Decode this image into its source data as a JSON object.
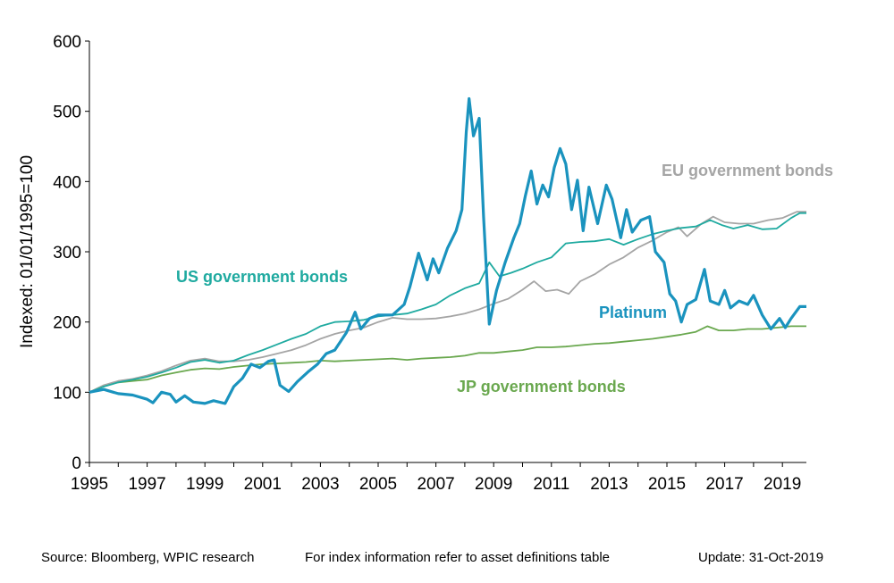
{
  "chart_data": {
    "type": "line",
    "title": "",
    "xlabel": "",
    "ylabel": "Indexed: 01/01/1995=100",
    "xlim": [
      1995,
      2019.83
    ],
    "ylim": [
      0,
      600
    ],
    "x_ticks": [
      "1995",
      "1997",
      "1999",
      "2001",
      "2003",
      "2005",
      "2007",
      "2009",
      "2011",
      "2013",
      "2015",
      "2017",
      "2019"
    ],
    "y_ticks": [
      "0",
      "100",
      "200",
      "300",
      "400",
      "500",
      "600"
    ],
    "grid": false,
    "legend": "inline labels",
    "series": [
      {
        "name": "Platinum",
        "color": "#1a93be",
        "points": [
          [
            1995,
            100
          ],
          [
            1995.5,
            104
          ],
          [
            1996,
            98
          ],
          [
            1996.5,
            96
          ],
          [
            1997,
            90
          ],
          [
            1997.2,
            85
          ],
          [
            1997.5,
            100
          ],
          [
            1997.8,
            97
          ],
          [
            1998,
            86
          ],
          [
            1998.3,
            95
          ],
          [
            1998.6,
            86
          ],
          [
            1999,
            84
          ],
          [
            1999.3,
            88
          ],
          [
            1999.7,
            84
          ],
          [
            2000,
            108
          ],
          [
            2000.3,
            120
          ],
          [
            2000.6,
            140
          ],
          [
            2000.9,
            135
          ],
          [
            2001.2,
            144
          ],
          [
            2001.4,
            146
          ],
          [
            2001.6,
            110
          ],
          [
            2001.9,
            101
          ],
          [
            2002.2,
            115
          ],
          [
            2002.6,
            130
          ],
          [
            2002.9,
            140
          ],
          [
            2003.2,
            155
          ],
          [
            2003.5,
            160
          ],
          [
            2003.9,
            185
          ],
          [
            2004.2,
            214
          ],
          [
            2004.4,
            190
          ],
          [
            2004.7,
            205
          ],
          [
            2005,
            210
          ],
          [
            2005.5,
            210
          ],
          [
            2005.9,
            225
          ],
          [
            2006.1,
            250
          ],
          [
            2006.4,
            298
          ],
          [
            2006.7,
            260
          ],
          [
            2006.9,
            290
          ],
          [
            2007.1,
            270
          ],
          [
            2007.4,
            305
          ],
          [
            2007.7,
            330
          ],
          [
            2007.9,
            360
          ],
          [
            2008.05,
            470
          ],
          [
            2008.15,
            518
          ],
          [
            2008.3,
            465
          ],
          [
            2008.5,
            490
          ],
          [
            2008.65,
            350
          ],
          [
            2008.85,
            197
          ],
          [
            2009.1,
            245
          ],
          [
            2009.4,
            285
          ],
          [
            2009.7,
            320
          ],
          [
            2009.9,
            340
          ],
          [
            2010.1,
            380
          ],
          [
            2010.3,
            415
          ],
          [
            2010.5,
            368
          ],
          [
            2010.7,
            395
          ],
          [
            2010.9,
            378
          ],
          [
            2011.1,
            420
          ],
          [
            2011.3,
            447
          ],
          [
            2011.5,
            425
          ],
          [
            2011.7,
            360
          ],
          [
            2011.9,
            402
          ],
          [
            2012.1,
            330
          ],
          [
            2012.3,
            392
          ],
          [
            2012.6,
            340
          ],
          [
            2012.9,
            395
          ],
          [
            2013.1,
            375
          ],
          [
            2013.4,
            320
          ],
          [
            2013.6,
            360
          ],
          [
            2013.8,
            328
          ],
          [
            2014.1,
            345
          ],
          [
            2014.4,
            350
          ],
          [
            2014.6,
            300
          ],
          [
            2014.9,
            285
          ],
          [
            2015.1,
            240
          ],
          [
            2015.3,
            230
          ],
          [
            2015.5,
            200
          ],
          [
            2015.7,
            225
          ],
          [
            2016,
            232
          ],
          [
            2016.3,
            275
          ],
          [
            2016.5,
            230
          ],
          [
            2016.8,
            225
          ],
          [
            2017,
            245
          ],
          [
            2017.2,
            220
          ],
          [
            2017.5,
            230
          ],
          [
            2017.8,
            225
          ],
          [
            2018,
            238
          ],
          [
            2018.3,
            210
          ],
          [
            2018.6,
            190
          ],
          [
            2018.9,
            205
          ],
          [
            2019.1,
            192
          ],
          [
            2019.3,
            205
          ],
          [
            2019.6,
            222
          ],
          [
            2019.83,
            222
          ]
        ]
      },
      {
        "name": "US government bonds",
        "color": "#1faaa0",
        "points": [
          [
            1995,
            100
          ],
          [
            1995.5,
            108
          ],
          [
            1996,
            114
          ],
          [
            1996.5,
            118
          ],
          [
            1997,
            122
          ],
          [
            1997.5,
            128
          ],
          [
            1998,
            135
          ],
          [
            1998.5,
            143
          ],
          [
            1999,
            146
          ],
          [
            1999.5,
            142
          ],
          [
            2000,
            145
          ],
          [
            2000.5,
            153
          ],
          [
            2001,
            160
          ],
          [
            2001.5,
            168
          ],
          [
            2002,
            176
          ],
          [
            2002.5,
            183
          ],
          [
            2003,
            194
          ],
          [
            2003.5,
            200
          ],
          [
            2004,
            201
          ],
          [
            2004.5,
            203
          ],
          [
            2005,
            208
          ],
          [
            2005.5,
            210
          ],
          [
            2006,
            212
          ],
          [
            2006.5,
            218
          ],
          [
            2007,
            225
          ],
          [
            2007.5,
            238
          ],
          [
            2008,
            248
          ],
          [
            2008.5,
            255
          ],
          [
            2008.85,
            285
          ],
          [
            2009.2,
            265
          ],
          [
            2009.6,
            270
          ],
          [
            2010,
            276
          ],
          [
            2010.5,
            285
          ],
          [
            2011,
            292
          ],
          [
            2011.5,
            312
          ],
          [
            2012,
            314
          ],
          [
            2012.5,
            315
          ],
          [
            2013,
            318
          ],
          [
            2013.5,
            310
          ],
          [
            2014,
            318
          ],
          [
            2014.5,
            325
          ],
          [
            2015,
            330
          ],
          [
            2015.5,
            334
          ],
          [
            2016,
            336
          ],
          [
            2016.5,
            345
          ],
          [
            2016.9,
            338
          ],
          [
            2017.3,
            333
          ],
          [
            2017.8,
            338
          ],
          [
            2018.3,
            332
          ],
          [
            2018.8,
            333
          ],
          [
            2019.3,
            348
          ],
          [
            2019.6,
            355
          ],
          [
            2019.83,
            355
          ]
        ]
      },
      {
        "name": "EU government bonds",
        "color": "#a5a5a5",
        "points": [
          [
            1995,
            100
          ],
          [
            1995.5,
            110
          ],
          [
            1996,
            116
          ],
          [
            1996.5,
            119
          ],
          [
            1997,
            124
          ],
          [
            1997.5,
            130
          ],
          [
            1998,
            138
          ],
          [
            1998.5,
            145
          ],
          [
            1999,
            148
          ],
          [
            1999.5,
            144
          ],
          [
            2000,
            144
          ],
          [
            2000.5,
            146
          ],
          [
            2001,
            150
          ],
          [
            2001.5,
            155
          ],
          [
            2002,
            160
          ],
          [
            2002.5,
            167
          ],
          [
            2003,
            176
          ],
          [
            2003.5,
            183
          ],
          [
            2004,
            188
          ],
          [
            2004.5,
            192
          ],
          [
            2005,
            200
          ],
          [
            2005.5,
            206
          ],
          [
            2006,
            204
          ],
          [
            2006.5,
            204
          ],
          [
            2007,
            205
          ],
          [
            2007.5,
            208
          ],
          [
            2008,
            212
          ],
          [
            2008.5,
            218
          ],
          [
            2009,
            226
          ],
          [
            2009.5,
            233
          ],
          [
            2010,
            246
          ],
          [
            2010.4,
            258
          ],
          [
            2010.8,
            244
          ],
          [
            2011.2,
            246
          ],
          [
            2011.6,
            240
          ],
          [
            2012,
            258
          ],
          [
            2012.5,
            268
          ],
          [
            2013,
            282
          ],
          [
            2013.5,
            292
          ],
          [
            2014,
            306
          ],
          [
            2014.5,
            316
          ],
          [
            2015,
            328
          ],
          [
            2015.4,
            335
          ],
          [
            2015.7,
            322
          ],
          [
            2016.2,
            340
          ],
          [
            2016.6,
            350
          ],
          [
            2017,
            342
          ],
          [
            2017.5,
            340
          ],
          [
            2018,
            340
          ],
          [
            2018.5,
            345
          ],
          [
            2019,
            348
          ],
          [
            2019.5,
            357
          ],
          [
            2019.83,
            357
          ]
        ]
      },
      {
        "name": "JP government bonds",
        "color": "#6aa84f",
        "points": [
          [
            1995,
            100
          ],
          [
            1995.5,
            110
          ],
          [
            1996,
            114
          ],
          [
            1996.5,
            116
          ],
          [
            1997,
            118
          ],
          [
            1997.5,
            124
          ],
          [
            1998,
            128
          ],
          [
            1998.5,
            132
          ],
          [
            1999,
            134
          ],
          [
            1999.5,
            133
          ],
          [
            2000,
            136
          ],
          [
            2000.5,
            138
          ],
          [
            2001,
            140
          ],
          [
            2001.5,
            141
          ],
          [
            2002,
            142
          ],
          [
            2002.5,
            143
          ],
          [
            2003,
            145
          ],
          [
            2003.5,
            144
          ],
          [
            2004,
            145
          ],
          [
            2004.5,
            146
          ],
          [
            2005,
            147
          ],
          [
            2005.5,
            148
          ],
          [
            2006,
            146
          ],
          [
            2006.5,
            148
          ],
          [
            2007,
            149
          ],
          [
            2007.5,
            150
          ],
          [
            2008,
            152
          ],
          [
            2008.5,
            156
          ],
          [
            2009,
            156
          ],
          [
            2009.5,
            158
          ],
          [
            2010,
            160
          ],
          [
            2010.5,
            164
          ],
          [
            2011,
            164
          ],
          [
            2011.5,
            165
          ],
          [
            2012,
            167
          ],
          [
            2012.5,
            169
          ],
          [
            2013,
            170
          ],
          [
            2013.5,
            172
          ],
          [
            2014,
            174
          ],
          [
            2014.5,
            176
          ],
          [
            2015,
            179
          ],
          [
            2015.5,
            182
          ],
          [
            2016,
            186
          ],
          [
            2016.4,
            194
          ],
          [
            2016.8,
            188
          ],
          [
            2017.3,
            188
          ],
          [
            2017.8,
            190
          ],
          [
            2018.3,
            190
          ],
          [
            2018.8,
            192
          ],
          [
            2019.3,
            194
          ],
          [
            2019.83,
            194
          ]
        ]
      }
    ],
    "annotations": [
      {
        "text": "EU government bonds",
        "series": "EU government bonds"
      },
      {
        "text": "US government bonds",
        "series": "US government bonds"
      },
      {
        "text": "Platinum",
        "series": "Platinum"
      },
      {
        "text": "JP government bonds",
        "series": "JP government bonds"
      }
    ]
  },
  "footer": {
    "source": "Source: Bloomberg, WPIC research",
    "index_note": "For index information refer to asset definitions table",
    "update": "Update: 31-Oct-2019"
  }
}
